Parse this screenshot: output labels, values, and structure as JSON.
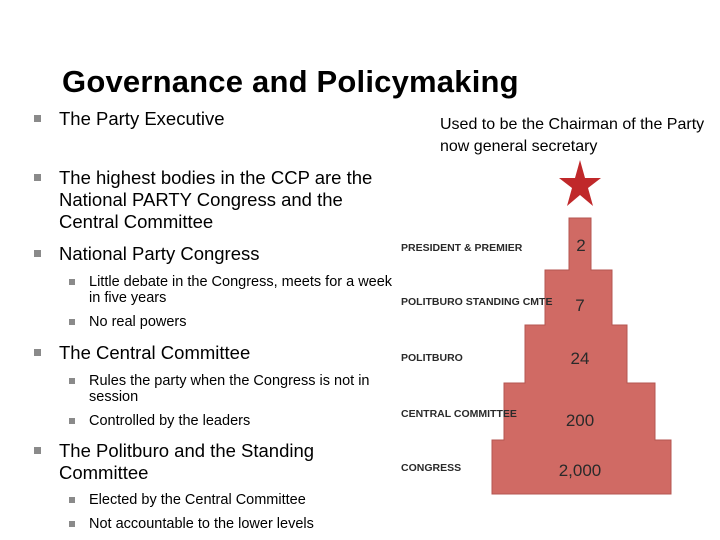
{
  "slide": {
    "title": "Governance and Policymaking",
    "bullets": [
      {
        "level": 1,
        "text": "The Party Executive"
      },
      {
        "level": 1,
        "text": "The highest bodies in the CCP are the National PARTY Congress and the Central Committee"
      },
      {
        "level": 1,
        "text": "National Party Congress"
      },
      {
        "level": 2,
        "text": "Little debate in the Congress, meets for a week in five years"
      },
      {
        "level": 2,
        "text": "No real powers"
      },
      {
        "level": 1,
        "text": "The Central Committee"
      },
      {
        "level": 2,
        "text": "Rules the party when the Congress is not in session"
      },
      {
        "level": 2,
        "text": "Controlled by the leaders"
      },
      {
        "level": 1,
        "text": "The Politburo and the Standing Committee"
      },
      {
        "level": 2,
        "text": "Elected by the Central Committee"
      },
      {
        "level": 2,
        "text": "Not accountable to the lower levels"
      }
    ],
    "note": "Used to be the Chairman of the Party now general secretary"
  },
  "pyramid": {
    "color": "#d06a64",
    "star_color": "#c0282a",
    "tiers": [
      {
        "label": "PRESIDENT & PREMIER",
        "value": "2"
      },
      {
        "label": "POLITBURO STANDING CMTE",
        "value": "7"
      },
      {
        "label": "POLITBURO",
        "value": "24"
      },
      {
        "label": "CENTRAL COMMITTEE",
        "value": "200"
      },
      {
        "label": "CONGRESS",
        "value": "2,000"
      }
    ]
  }
}
